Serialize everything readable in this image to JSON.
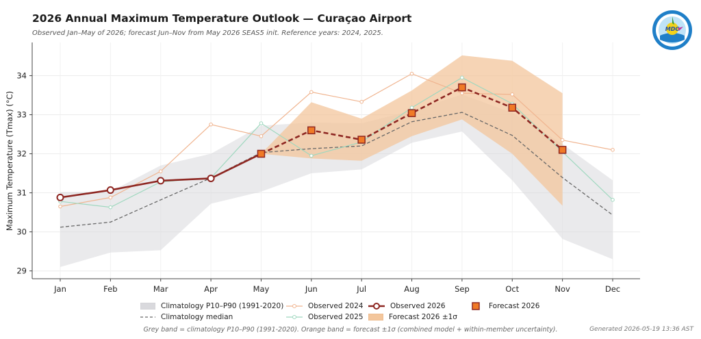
{
  "header": {
    "title": "2026 Annual Maximum Temperature Outlook — Curaçao Airport",
    "subtitle": "Observed Jan–May of 2026; forecast Jun–Nov from May 2026 SEAS5 init. Reference years: 2024, 2025."
  },
  "logo": {
    "icon": "mdc-logo-icon",
    "text": "MDC"
  },
  "footer": {
    "note": "Grey band = climatology P10–P90 (1991-2020). Orange band = forecast ±1σ (combined model + within-member uncertainty).",
    "generated": "Generated 2026-05-19 13:36 AST"
  },
  "legend": {
    "clim_band": "Climatology P10–P90 (1991-2020)",
    "clim_median": "Climatology median",
    "obs2024": "Observed 2024",
    "obs2025": "Observed 2025",
    "obs2026": "Observed 2026",
    "fc_band": "Forecast 2026 ±1σ",
    "fc2026": "Forecast 2026"
  },
  "chart_data": {
    "type": "line",
    "categories": [
      "Jan",
      "Feb",
      "Mar",
      "Apr",
      "May",
      "Jun",
      "Jul",
      "Aug",
      "Sep",
      "Oct",
      "Nov",
      "Dec"
    ],
    "ylabel": "Maximum Temperature (Tmax) (°C)",
    "xlabel": "",
    "ylim": [
      28.8,
      34.85
    ],
    "yticks": [
      29,
      30,
      31,
      32,
      33,
      34
    ],
    "grid": true,
    "legend_position": "bottom",
    "climatology_p10": [
      29.1,
      29.47,
      29.53,
      30.72,
      31.03,
      31.5,
      31.6,
      32.28,
      32.57,
      31.32,
      29.82,
      29.3
    ],
    "climatology_p90": [
      31.02,
      31.03,
      31.7,
      32.0,
      32.72,
      32.8,
      32.78,
      33.1,
      33.52,
      33.05,
      32.25,
      31.32
    ],
    "climatology_median": [
      30.12,
      30.25,
      30.82,
      31.38,
      32.03,
      32.13,
      32.2,
      32.82,
      33.06,
      32.47,
      31.39,
      30.43
    ],
    "observed_2024": [
      30.65,
      30.88,
      31.55,
      32.75,
      32.45,
      33.58,
      33.33,
      34.05,
      33.55,
      33.52,
      32.35,
      32.1
    ],
    "observed_2025": [
      30.78,
      30.63,
      31.28,
      31.38,
      32.78,
      31.95,
      32.3,
      33.18,
      33.95,
      33.28,
      32.05,
      30.82
    ],
    "observed_2026": [
      30.88,
      31.07,
      31.31,
      31.37,
      32.0,
      null,
      null,
      null,
      null,
      null,
      null,
      null
    ],
    "forecast_2026": [
      null,
      null,
      null,
      null,
      32.0,
      32.6,
      32.36,
      33.04,
      33.7,
      33.18,
      32.1,
      null
    ],
    "forecast_lower": [
      null,
      null,
      null,
      null,
      32.0,
      31.88,
      31.82,
      32.45,
      32.88,
      32.0,
      30.67,
      null
    ],
    "forecast_upper": [
      null,
      null,
      null,
      null,
      32.0,
      33.32,
      32.9,
      33.62,
      34.52,
      34.38,
      33.55,
      null
    ],
    "colors": {
      "clim_band": "#d9d9dd",
      "clim_median": "#666666",
      "obs2024": "#f0b48f",
      "obs2025": "#9fd8bf",
      "obs2026": "#8e2722",
      "fc_band": "#f3c69c",
      "fc_marker": "#f07a27"
    }
  }
}
